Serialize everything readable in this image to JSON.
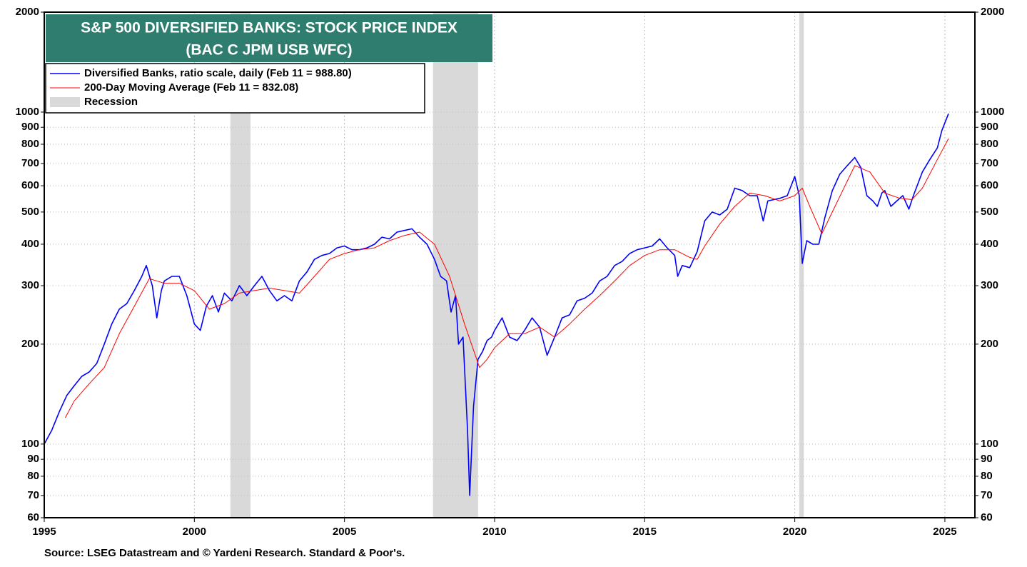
{
  "chart_data": {
    "type": "line",
    "title": "S&P 500 DIVERSIFIED BANKS: STOCK PRICE INDEX",
    "subtitle": "(BAC C JPM USB WFC)",
    "source": "Source: LSEG Datastream and © Yardeni Research. Standard & Poor's.",
    "log_scale": true,
    "grid": true,
    "legend": "upper left",
    "xlim": [
      1995,
      2026
    ],
    "xticks": [
      1995,
      2000,
      2005,
      2010,
      2015,
      2020,
      2025
    ],
    "ylim": [
      60,
      2000
    ],
    "yticks": [
      60,
      70,
      80,
      90,
      100,
      200,
      300,
      400,
      500,
      600,
      700,
      800,
      900,
      1000,
      2000
    ],
    "recessions": {
      "name": "Recession",
      "color": "#d9d9d9",
      "periods": [
        [
          2001.2,
          2001.87
        ],
        [
          2007.95,
          2009.45
        ],
        [
          2020.15,
          2020.3
        ]
      ]
    },
    "series": [
      {
        "name": "Diversified Banks, ratio scale, daily (Feb 11 = 988.80)",
        "color": "#0000ff",
        "x": [
          1995.0,
          1995.25,
          1995.5,
          1995.75,
          1996.0,
          1996.25,
          1996.5,
          1996.75,
          1997.0,
          1997.25,
          1997.5,
          1997.75,
          1998.0,
          1998.25,
          1998.4,
          1998.6,
          1998.75,
          1998.9,
          1999.0,
          1999.25,
          1999.5,
          1999.75,
          2000.0,
          2000.2,
          2000.4,
          2000.6,
          2000.8,
          2001.0,
          2001.25,
          2001.5,
          2001.75,
          2002.0,
          2002.25,
          2002.5,
          2002.75,
          2003.0,
          2003.25,
          2003.5,
          2003.75,
          2004.0,
          2004.25,
          2004.5,
          2004.75,
          2005.0,
          2005.25,
          2005.5,
          2005.75,
          2006.0,
          2006.25,
          2006.5,
          2006.75,
          2007.0,
          2007.25,
          2007.5,
          2007.75,
          2008.0,
          2008.2,
          2008.4,
          2008.55,
          2008.7,
          2008.8,
          2008.95,
          2009.1,
          2009.17,
          2009.3,
          2009.45,
          2009.6,
          2009.75,
          2009.9,
          2010.0,
          2010.25,
          2010.5,
          2010.75,
          2011.0,
          2011.25,
          2011.5,
          2011.75,
          2012.0,
          2012.25,
          2012.5,
          2012.75,
          2013.0,
          2013.25,
          2013.5,
          2013.75,
          2014.0,
          2014.25,
          2014.5,
          2014.75,
          2015.0,
          2015.25,
          2015.5,
          2015.75,
          2016.0,
          2016.1,
          2016.25,
          2016.5,
          2016.75,
          2017.0,
          2017.25,
          2017.5,
          2017.75,
          2018.0,
          2018.25,
          2018.5,
          2018.75,
          2018.95,
          2019.1,
          2019.5,
          2019.75,
          2020.0,
          2020.15,
          2020.25,
          2020.4,
          2020.6,
          2020.8,
          2021.0,
          2021.25,
          2021.5,
          2021.75,
          2022.0,
          2022.2,
          2022.4,
          2022.6,
          2022.75,
          2022.9,
          2023.0,
          2023.2,
          2023.4,
          2023.6,
          2023.8,
          2023.95,
          2024.25,
          2024.5,
          2024.75,
          2024.9,
          2025.12
        ],
        "values": [
          100,
          110,
          125,
          140,
          150,
          160,
          165,
          175,
          200,
          230,
          255,
          265,
          290,
          320,
          345,
          300,
          240,
          290,
          310,
          320,
          320,
          280,
          230,
          220,
          260,
          280,
          250,
          285,
          270,
          300,
          280,
          300,
          320,
          290,
          270,
          280,
          270,
          310,
          330,
          360,
          370,
          375,
          390,
          395,
          385,
          385,
          390,
          400,
          420,
          415,
          435,
          440,
          445,
          420,
          400,
          360,
          320,
          310,
          250,
          280,
          200,
          210,
          110,
          70,
          130,
          180,
          190,
          205,
          210,
          220,
          240,
          210,
          205,
          220,
          240,
          225,
          185,
          210,
          240,
          245,
          270,
          275,
          285,
          310,
          320,
          345,
          355,
          375,
          385,
          390,
          395,
          415,
          390,
          370,
          320,
          345,
          340,
          380,
          470,
          500,
          490,
          510,
          590,
          580,
          560,
          560,
          470,
          540,
          550,
          560,
          640,
          560,
          350,
          410,
          400,
          400,
          480,
          580,
          650,
          690,
          730,
          680,
          560,
          540,
          520,
          570,
          580,
          520,
          540,
          560,
          510,
          560,
          660,
          720,
          780,
          880,
          988.8
        ]
      },
      {
        "name": "200-Day Moving Average (Feb 11 = 832.08)",
        "color": "#ff0000",
        "x": [
          1995.7,
          1996.0,
          1996.5,
          1997.0,
          1997.5,
          1998.0,
          1998.5,
          1999.0,
          1999.5,
          2000.0,
          2000.5,
          2001.0,
          2001.5,
          2002.0,
          2002.5,
          2003.0,
          2003.5,
          2004.0,
          2004.5,
          2005.0,
          2005.5,
          2006.0,
          2006.5,
          2007.0,
          2007.5,
          2008.0,
          2008.5,
          2009.0,
          2009.5,
          2009.75,
          2010.0,
          2010.5,
          2011.0,
          2011.5,
          2012.0,
          2012.5,
          2013.0,
          2013.5,
          2014.0,
          2014.5,
          2015.0,
          2015.5,
          2016.0,
          2016.5,
          2016.75,
          2017.0,
          2017.5,
          2018.0,
          2018.5,
          2019.0,
          2019.5,
          2020.0,
          2020.25,
          2020.5,
          2020.9,
          2021.25,
          2021.75,
          2022.0,
          2022.5,
          2023.0,
          2023.5,
          2023.9,
          2024.25,
          2024.75,
          2025.12
        ],
        "values": [
          120,
          135,
          152,
          170,
          215,
          260,
          315,
          305,
          305,
          290,
          255,
          265,
          285,
          290,
          295,
          290,
          285,
          320,
          360,
          375,
          385,
          390,
          410,
          425,
          435,
          400,
          320,
          230,
          170,
          180,
          195,
          215,
          215,
          225,
          210,
          230,
          255,
          280,
          310,
          345,
          370,
          385,
          385,
          365,
          360,
          395,
          460,
          520,
          570,
          560,
          540,
          560,
          590,
          520,
          430,
          500,
          620,
          690,
          660,
          570,
          550,
          545,
          590,
          720,
          832.08
        ]
      }
    ]
  }
}
